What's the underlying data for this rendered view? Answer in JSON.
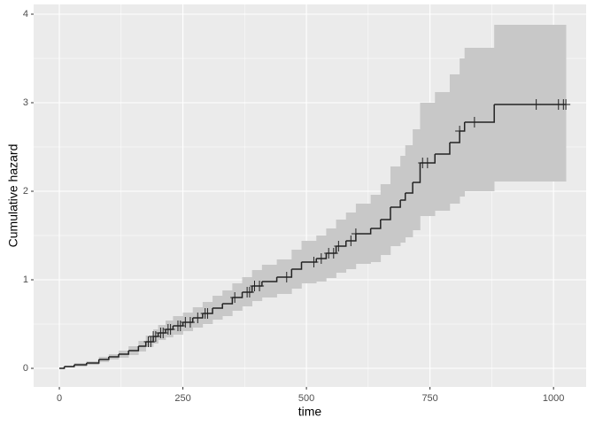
{
  "chart_data": {
    "type": "step",
    "x_label": "time",
    "y_label": "Cumulative hazard",
    "xlim": [
      -52,
      1066
    ],
    "ylim": [
      -0.21,
      4.11
    ],
    "xticks": [
      0,
      250,
      500,
      750,
      1000
    ],
    "yticks": [
      0,
      1,
      2,
      3,
      4
    ],
    "grid": true,
    "line_color": "#222222",
    "band_color": "#c8c8c8",
    "panel_color": "#ebebeb",
    "time": [
      0,
      10,
      30,
      55,
      80,
      100,
      120,
      140,
      160,
      175,
      190,
      200,
      215,
      230,
      250,
      270,
      290,
      310,
      330,
      350,
      370,
      390,
      410,
      440,
      470,
      490,
      520,
      540,
      560,
      580,
      600,
      630,
      650,
      670,
      690,
      700,
      715,
      730,
      760,
      790,
      810,
      820,
      880,
      1025
    ],
    "cumhaz": [
      0,
      0.02,
      0.04,
      0.06,
      0.1,
      0.13,
      0.16,
      0.2,
      0.25,
      0.3,
      0.36,
      0.4,
      0.44,
      0.48,
      0.52,
      0.57,
      0.62,
      0.68,
      0.73,
      0.8,
      0.86,
      0.93,
      0.98,
      1.03,
      1.12,
      1.2,
      1.24,
      1.3,
      1.38,
      1.44,
      1.52,
      1.58,
      1.68,
      1.82,
      1.9,
      1.98,
      2.1,
      2.32,
      2.42,
      2.55,
      2.68,
      2.78,
      2.98,
      2.98
    ],
    "lower": [
      0,
      0.01,
      0.02,
      0.04,
      0.07,
      0.1,
      0.12,
      0.15,
      0.19,
      0.24,
      0.28,
      0.32,
      0.35,
      0.38,
      0.42,
      0.46,
      0.5,
      0.55,
      0.59,
      0.65,
      0.7,
      0.76,
      0.8,
      0.84,
      0.9,
      0.96,
      0.98,
      1.02,
      1.08,
      1.12,
      1.18,
      1.2,
      1.28,
      1.38,
      1.42,
      1.48,
      1.56,
      1.72,
      1.78,
      1.86,
      1.94,
      2.0,
      2.11,
      2.11
    ],
    "upper": [
      0,
      0.03,
      0.06,
      0.08,
      0.13,
      0.16,
      0.2,
      0.25,
      0.31,
      0.37,
      0.44,
      0.49,
      0.54,
      0.59,
      0.63,
      0.69,
      0.75,
      0.82,
      0.88,
      0.96,
      1.03,
      1.11,
      1.17,
      1.23,
      1.34,
      1.44,
      1.5,
      1.58,
      1.68,
      1.76,
      1.86,
      1.96,
      2.08,
      2.28,
      2.4,
      2.52,
      2.7,
      3.0,
      3.12,
      3.32,
      3.5,
      3.62,
      3.88,
      3.88
    ],
    "censor_x": [
      180,
      185,
      190,
      195,
      205,
      210,
      220,
      225,
      240,
      245,
      255,
      265,
      280,
      295,
      300,
      355,
      380,
      385,
      395,
      405,
      460,
      515,
      530,
      545,
      555,
      565,
      590,
      600,
      735,
      745,
      810,
      840,
      965,
      1010,
      1020,
      1025
    ],
    "censor_y": [
      0.3,
      0.3,
      0.36,
      0.36,
      0.4,
      0.4,
      0.44,
      0.44,
      0.48,
      0.48,
      0.52,
      0.52,
      0.57,
      0.62,
      0.62,
      0.8,
      0.86,
      0.86,
      0.93,
      0.93,
      1.03,
      1.2,
      1.24,
      1.3,
      1.3,
      1.38,
      1.44,
      1.52,
      2.32,
      2.32,
      2.68,
      2.78,
      2.98,
      2.98,
      2.98,
      2.98
    ]
  }
}
